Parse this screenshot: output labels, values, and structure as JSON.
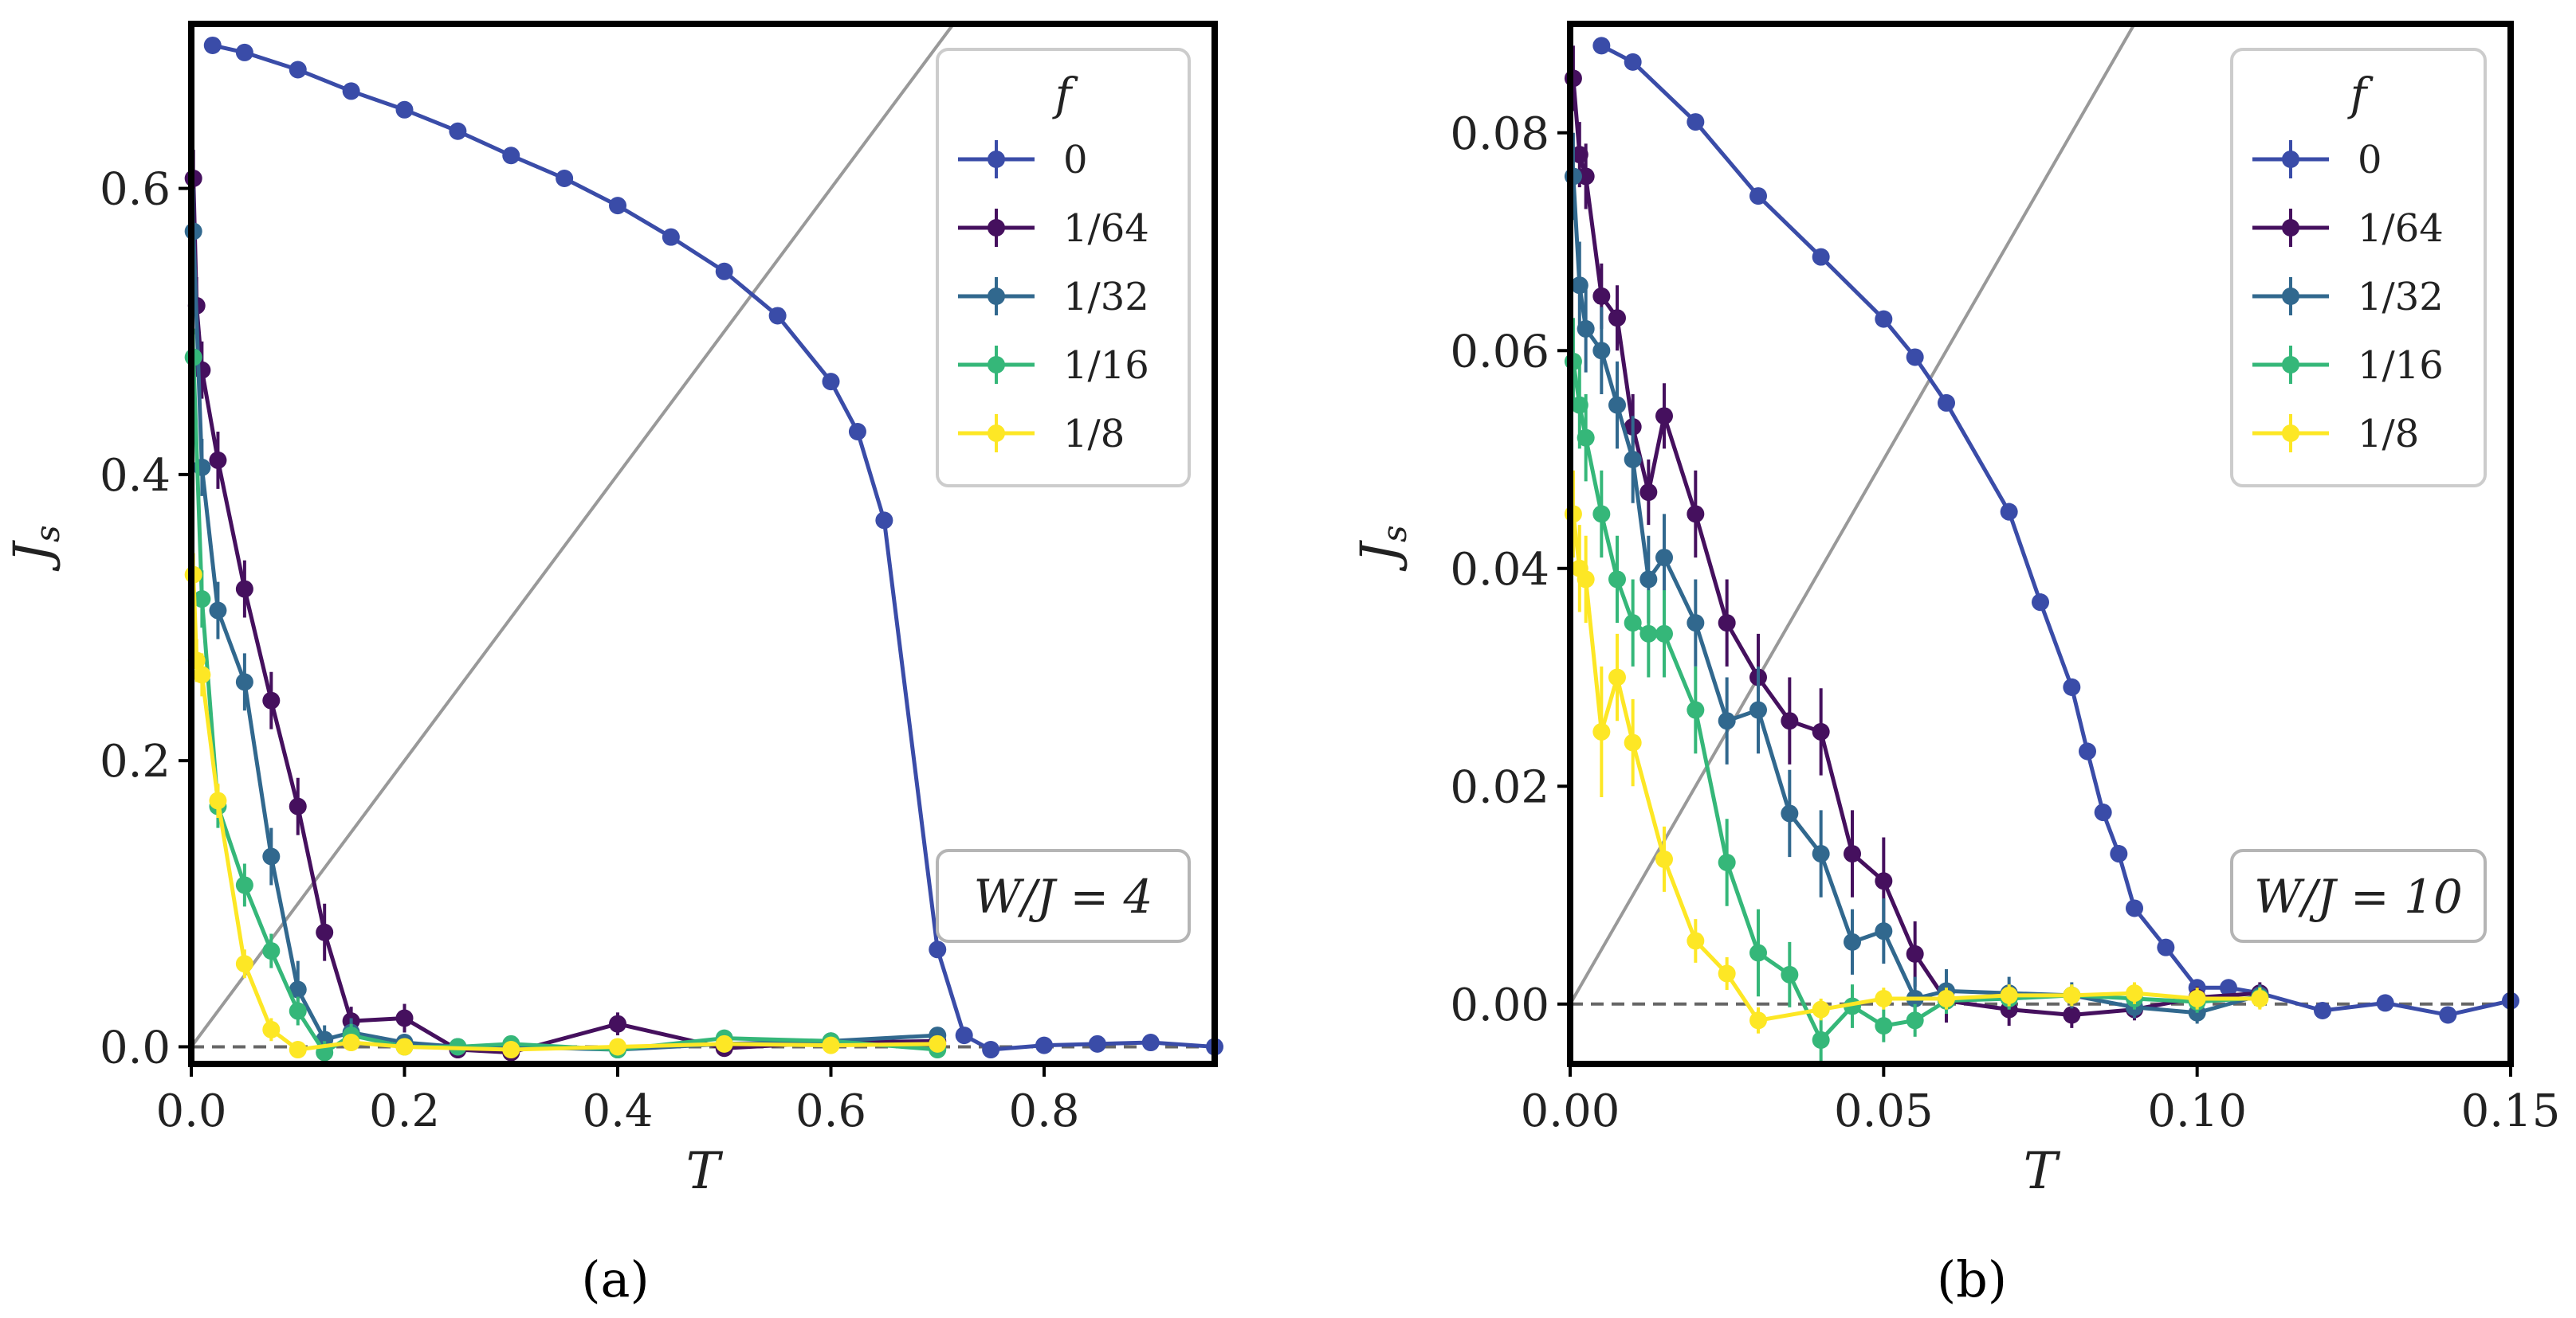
{
  "figure": {
    "captions": [
      "(a)",
      "(b)"
    ]
  },
  "chart_data": [
    {
      "type": "line",
      "panel_caption": "(a)",
      "xlabel": "T",
      "ylabel": "J_s",
      "xlim": [
        0.0,
        0.96
      ],
      "ylim": [
        -0.012,
        0.715
      ],
      "xticks": [
        0.0,
        0.2,
        0.4,
        0.6,
        0.8
      ],
      "xtick_labels": [
        "0.0",
        "0.2",
        "0.4",
        "0.6",
        "0.8"
      ],
      "yticks": [
        0.0,
        0.2,
        0.4,
        0.6
      ],
      "ytick_labels": [
        "0.0",
        "0.2",
        "0.4",
        "0.6"
      ],
      "legend_title": "f",
      "legend_position": "top-right",
      "annotation": "W/J = 4",
      "reference_line": {
        "type": "diagonal",
        "from": [
          0.0,
          0.0
        ],
        "to": [
          0.96,
          0.96
        ],
        "color": "#999999"
      },
      "zero_line": {
        "y": 0.0,
        "style": "dashed",
        "color": "#666666"
      },
      "series": [
        {
          "name": "0",
          "color": "#3a4ca8",
          "x": [
            0.02,
            0.05,
            0.1,
            0.15,
            0.2,
            0.25,
            0.3,
            0.35,
            0.4,
            0.45,
            0.5,
            0.55,
            0.6,
            0.625,
            0.65,
            0.7,
            0.725,
            0.75,
            0.8,
            0.85,
            0.9,
            0.96
          ],
          "y": [
            0.7,
            0.695,
            0.683,
            0.668,
            0.655,
            0.64,
            0.623,
            0.607,
            0.588,
            0.566,
            0.542,
            0.511,
            0.465,
            0.43,
            0.368,
            0.068,
            0.008,
            -0.002,
            0.001,
            0.002,
            0.003,
            0.0
          ],
          "err": [
            0,
            0,
            0,
            0,
            0,
            0,
            0,
            0,
            0,
            0,
            0,
            0,
            0,
            0,
            0,
            0,
            0,
            0,
            0,
            0,
            0,
            0
          ]
        },
        {
          "name": "1/64",
          "color": "#45105e",
          "x": [
            0.002,
            0.005,
            0.01,
            0.025,
            0.05,
            0.075,
            0.1,
            0.125,
            0.15,
            0.2,
            0.25,
            0.3,
            0.4,
            0.5,
            0.6,
            0.7
          ],
          "y": [
            0.607,
            0.518,
            0.473,
            0.41,
            0.32,
            0.242,
            0.168,
            0.08,
            0.018,
            0.02,
            -0.002,
            -0.004,
            0.016,
            -0.001,
            0.003,
            0.004
          ],
          "err": [
            0.02,
            0.02,
            0.02,
            0.02,
            0.02,
            0.02,
            0.02,
            0.02,
            0.01,
            0.01,
            0.006,
            0.006,
            0.008,
            0.004,
            0.004,
            0.004
          ]
        },
        {
          "name": "1/32",
          "color": "#31688e",
          "x": [
            0.002,
            0.01,
            0.025,
            0.05,
            0.075,
            0.1,
            0.125,
            0.15,
            0.2,
            0.25,
            0.3,
            0.4,
            0.5,
            0.6,
            0.7
          ],
          "y": [
            0.57,
            0.405,
            0.305,
            0.255,
            0.133,
            0.04,
            0.005,
            0.01,
            0.003,
            0.0,
            0.0,
            -0.002,
            0.002,
            0.004,
            0.008
          ],
          "err": [
            0.03,
            0.02,
            0.02,
            0.02,
            0.02,
            0.02,
            0.01,
            0.01,
            0.006,
            0.005,
            0.005,
            0.005,
            0.004,
            0.004,
            0.004
          ]
        },
        {
          "name": "1/16",
          "color": "#35b779",
          "x": [
            0.002,
            0.01,
            0.025,
            0.05,
            0.075,
            0.1,
            0.125,
            0.15,
            0.2,
            0.25,
            0.3,
            0.4,
            0.5,
            0.6,
            0.7
          ],
          "y": [
            0.482,
            0.313,
            0.168,
            0.113,
            0.067,
            0.025,
            -0.004,
            0.008,
            0.0,
            0.0,
            0.002,
            -0.002,
            0.006,
            0.004,
            -0.002
          ],
          "err": [
            0.02,
            0.02,
            0.015,
            0.015,
            0.012,
            0.01,
            0.008,
            0.008,
            0.005,
            0.005,
            0.005,
            0.004,
            0.004,
            0.004,
            0.004
          ]
        },
        {
          "name": "1/8",
          "color": "#fde725",
          "x": [
            0.002,
            0.005,
            0.01,
            0.025,
            0.05,
            0.075,
            0.1,
            0.15,
            0.2,
            0.3,
            0.4,
            0.5,
            0.6,
            0.7
          ],
          "y": [
            0.33,
            0.27,
            0.26,
            0.172,
            0.058,
            0.012,
            -0.002,
            0.003,
            0.0,
            -0.002,
            0.0,
            0.002,
            0.001,
            0.002
          ],
          "err": [
            0.015,
            0.015,
            0.015,
            0.012,
            0.01,
            0.008,
            0.005,
            0.005,
            0.004,
            0.004,
            0.004,
            0.004,
            0.004,
            0.004
          ]
        }
      ]
    },
    {
      "type": "line",
      "panel_caption": "(b)",
      "xlabel": "T",
      "ylabel": "J_s",
      "xlim": [
        0.0,
        0.15
      ],
      "ylim": [
        -0.0055,
        0.09
      ],
      "xticks": [
        0.0,
        0.05,
        0.1,
        0.15
      ],
      "xtick_labels": [
        "0.00",
        "0.05",
        "0.10",
        "0.15"
      ],
      "yticks": [
        0.0,
        0.02,
        0.04,
        0.06,
        0.08
      ],
      "ytick_labels": [
        "0.00",
        "0.02",
        "0.04",
        "0.06",
        "0.08"
      ],
      "legend_title": "f",
      "legend_position": "top-right",
      "annotation": "W/J = 10",
      "reference_line": {
        "type": "diagonal",
        "from": [
          0.0,
          0.0
        ],
        "to": [
          0.15,
          0.15
        ],
        "color": "#999999"
      },
      "zero_line": {
        "y": 0.0,
        "style": "dashed",
        "color": "#666666"
      },
      "series": [
        {
          "name": "0",
          "color": "#3a4ca8",
          "x": [
            0.005,
            0.01,
            0.02,
            0.03,
            0.04,
            0.05,
            0.055,
            0.06,
            0.07,
            0.075,
            0.08,
            0.0825,
            0.085,
            0.0875,
            0.09,
            0.095,
            0.1,
            0.105,
            0.11,
            0.12,
            0.13,
            0.14,
            0.15
          ],
          "y": [
            0.088,
            0.0865,
            0.081,
            0.0742,
            0.0686,
            0.0629,
            0.0594,
            0.0552,
            0.0452,
            0.0369,
            0.0291,
            0.0232,
            0.0176,
            0.0138,
            0.0088,
            0.0052,
            0.0015,
            0.0015,
            0.001,
            -0.0006,
            0.0001,
            -0.001,
            0.0003
          ],
          "err": [
            0,
            0,
            0,
            0,
            0,
            0,
            0,
            0,
            0.0008,
            0.0008,
            0.0008,
            0.0008,
            0.0008,
            0.0008,
            0.0006,
            0.0006,
            0.0006,
            0.0005,
            0.0005,
            0.0004,
            0.0004,
            0.0004,
            0.0004
          ]
        },
        {
          "name": "1/64",
          "color": "#45105e",
          "x": [
            0.0005,
            0.0015,
            0.0025,
            0.005,
            0.0075,
            0.01,
            0.0125,
            0.015,
            0.02,
            0.025,
            0.03,
            0.035,
            0.04,
            0.045,
            0.05,
            0.055,
            0.06,
            0.07,
            0.08,
            0.09,
            0.1,
            0.11
          ],
          "y": [
            0.085,
            0.078,
            0.076,
            0.065,
            0.063,
            0.053,
            0.047,
            0.054,
            0.045,
            0.035,
            0.03,
            0.026,
            0.025,
            0.0138,
            0.0113,
            0.0046,
            0.0003,
            -0.0005,
            -0.001,
            -0.0005,
            0.0006,
            0.001
          ],
          "err": [
            0.003,
            0.003,
            0.003,
            0.003,
            0.003,
            0.003,
            0.003,
            0.003,
            0.004,
            0.004,
            0.004,
            0.004,
            0.004,
            0.004,
            0.004,
            0.003,
            0.002,
            0.0015,
            0.0012,
            0.001,
            0.001,
            0.001
          ]
        },
        {
          "name": "1/32",
          "color": "#31688e",
          "x": [
            0.0005,
            0.0015,
            0.0025,
            0.005,
            0.0075,
            0.01,
            0.0125,
            0.015,
            0.02,
            0.025,
            0.03,
            0.035,
            0.04,
            0.045,
            0.05,
            0.055,
            0.06,
            0.07,
            0.08,
            0.09,
            0.1,
            0.11
          ],
          "y": [
            0.076,
            0.066,
            0.062,
            0.06,
            0.055,
            0.05,
            0.039,
            0.041,
            0.035,
            0.026,
            0.027,
            0.0175,
            0.0138,
            0.0057,
            0.0067,
            0.0005,
            0.0012,
            0.001,
            0.0008,
            -0.0003,
            -0.0008,
            0.0008
          ],
          "err": [
            0.004,
            0.004,
            0.004,
            0.004,
            0.004,
            0.004,
            0.004,
            0.004,
            0.004,
            0.004,
            0.004,
            0.004,
            0.004,
            0.003,
            0.003,
            0.002,
            0.002,
            0.0015,
            0.0012,
            0.001,
            0.001,
            0.001
          ]
        },
        {
          "name": "1/16",
          "color": "#35b779",
          "x": [
            0.0005,
            0.0015,
            0.0025,
            0.005,
            0.0075,
            0.01,
            0.0125,
            0.015,
            0.02,
            0.025,
            0.03,
            0.035,
            0.04,
            0.045,
            0.05,
            0.055,
            0.06,
            0.07,
            0.08,
            0.09,
            0.1,
            0.11
          ],
          "y": [
            0.059,
            0.055,
            0.052,
            0.045,
            0.039,
            0.035,
            0.034,
            0.034,
            0.027,
            0.013,
            0.0047,
            0.0027,
            -0.0033,
            -0.0002,
            -0.002,
            -0.0015,
            0.0003,
            0.0005,
            0.0008,
            0.0005,
            0.0002,
            0.0006
          ],
          "err": [
            0.004,
            0.004,
            0.004,
            0.004,
            0.004,
            0.004,
            0.004,
            0.004,
            0.004,
            0.004,
            0.004,
            0.003,
            0.002,
            0.002,
            0.0015,
            0.0015,
            0.0012,
            0.001,
            0.001,
            0.001,
            0.001,
            0.001
          ]
        },
        {
          "name": "1/8",
          "color": "#fde725",
          "x": [
            0.0005,
            0.0015,
            0.0025,
            0.005,
            0.0075,
            0.01,
            0.015,
            0.02,
            0.025,
            0.03,
            0.04,
            0.05,
            0.06,
            0.07,
            0.08,
            0.09,
            0.1,
            0.11
          ],
          "y": [
            0.045,
            0.04,
            0.039,
            0.025,
            0.03,
            0.024,
            0.0133,
            0.0058,
            0.0028,
            -0.0015,
            -0.0005,
            0.0005,
            0.0005,
            0.0008,
            0.0008,
            0.001,
            0.0005,
            0.0005
          ],
          "err": [
            0.004,
            0.004,
            0.004,
            0.006,
            0.004,
            0.004,
            0.003,
            0.002,
            0.0015,
            0.0012,
            0.001,
            0.001,
            0.001,
            0.001,
            0.001,
            0.001,
            0.001,
            0.001
          ]
        }
      ]
    }
  ]
}
